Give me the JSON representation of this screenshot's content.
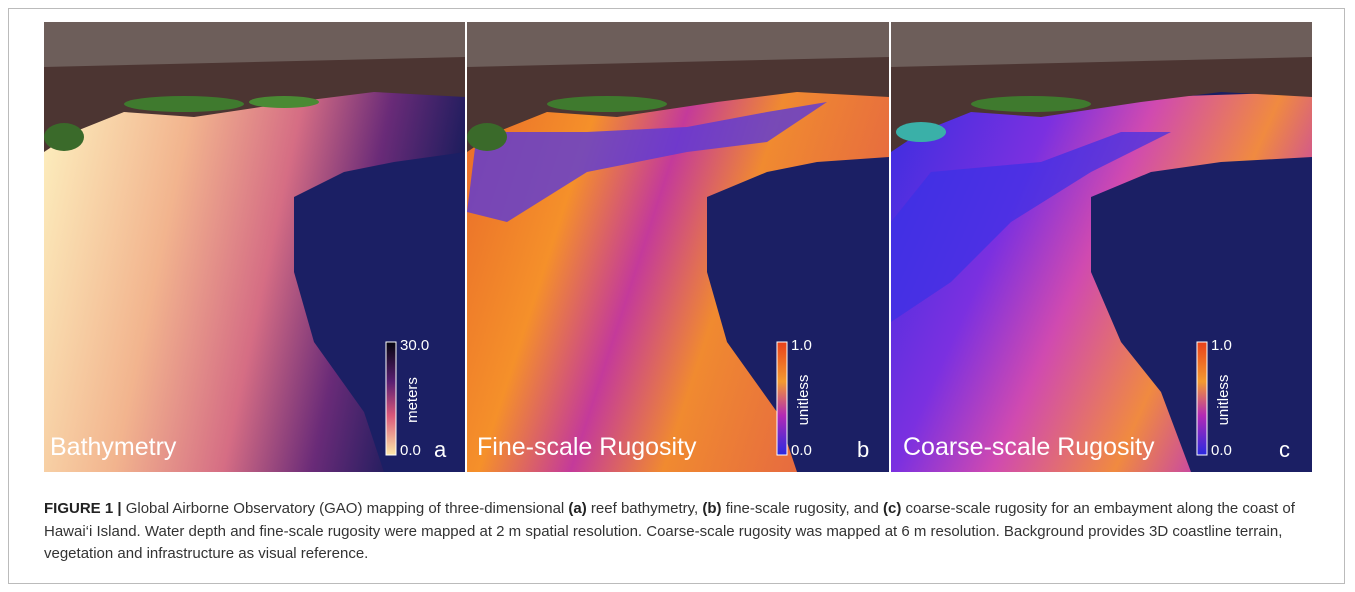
{
  "figure": {
    "panels": [
      {
        "title": "Bathymetry",
        "letter": "a",
        "colorbar": {
          "max": "30.0",
          "min": "0.0",
          "unit": "meters"
        }
      },
      {
        "title": "Fine-scale Rugosity",
        "letter": "b",
        "colorbar": {
          "max": "1.0",
          "min": "0.0",
          "unit": "unitless"
        }
      },
      {
        "title": "Coarse-scale Rugosity",
        "letter": "c",
        "colorbar": {
          "max": "1.0",
          "min": "0.0",
          "unit": "unitless"
        }
      }
    ],
    "caption": {
      "label": "FIGURE 1 |",
      "parts": [
        {
          "text": " Global Airborne Observatory (GAO) mapping of three-dimensional ",
          "bold": false
        },
        {
          "text": "(a)",
          "bold": true
        },
        {
          "text": " reef bathymetry, ",
          "bold": false
        },
        {
          "text": "(b)",
          "bold": true
        },
        {
          "text": " fine-scale rugosity, and ",
          "bold": false
        },
        {
          "text": "(c)",
          "bold": true
        },
        {
          "text": " coarse-scale rugosity for an embayment along the coast of Hawai‘i Island. Water depth and fine-scale rugosity were mapped at 2 m spatial resolution. Coarse-scale rugosity was mapped at 6 m resolution. Background provides 3D coastline terrain, vegetation and infrastructure as visual reference.",
          "bold": false
        }
      ]
    }
  }
}
